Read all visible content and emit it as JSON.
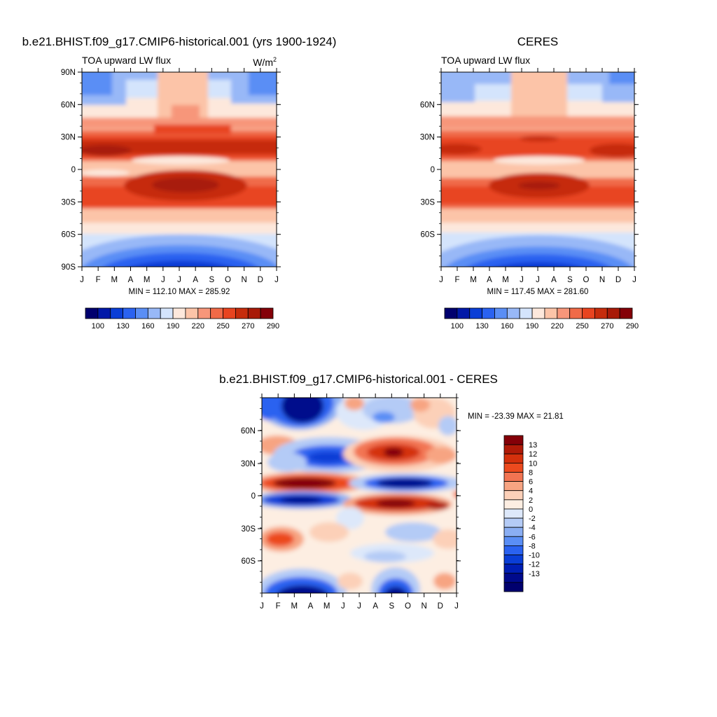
{
  "panels": [
    {
      "title": "b.e21.BHIST.f09_g17.CMIP6-historical.001 (yrs 1900-1924)",
      "subtitle_left": "TOA upward LW flux",
      "units_base": "W/m",
      "units_sup": "2",
      "y_ticks": [
        "90N",
        "60N",
        "30N",
        "0",
        "30S",
        "60S",
        "90S"
      ],
      "x_ticks": [
        "J",
        "F",
        "M",
        "A",
        "M",
        "J",
        "J",
        "A",
        "S",
        "O",
        "N",
        "D",
        "J"
      ],
      "minmax": "MIN = 112.10 MAX = 285.92",
      "colorbar_labels": [
        "100",
        "130",
        "160",
        "190",
        "220",
        "250",
        "270",
        "290"
      ]
    },
    {
      "title": "CERES",
      "subtitle_left": "TOA upward LW flux",
      "y_ticks": [
        "60N",
        "30N",
        "0",
        "30S",
        "60S"
      ],
      "x_ticks": [
        "J",
        "F",
        "M",
        "A",
        "M",
        "J",
        "J",
        "A",
        "S",
        "O",
        "N",
        "D",
        "J"
      ],
      "minmax": "MIN = 117.45 MAX = 281.60",
      "colorbar_labels": [
        "100",
        "130",
        "160",
        "190",
        "220",
        "250",
        "270",
        "290"
      ]
    },
    {
      "title": "b.e21.BHIST.f09_g17.CMIP6-historical.001 - CERES",
      "y_ticks": [
        "60N",
        "30N",
        "0",
        "30S",
        "60S"
      ],
      "x_ticks": [
        "J",
        "F",
        "M",
        "A",
        "M",
        "J",
        "J",
        "A",
        "S",
        "O",
        "N",
        "D",
        "J"
      ],
      "minmax": "MIN = -23.39 MAX =  21.81",
      "colorbar_labels": [
        "13",
        "12",
        "10",
        "8",
        "6",
        "4",
        "2",
        "0",
        "-2",
        "-4",
        "-6",
        "-8",
        "-10",
        "-12",
        "-13"
      ]
    }
  ],
  "colors": {
    "abs_palette": [
      "#00006e",
      "#0018a8",
      "#0a3ed6",
      "#2a62f0",
      "#5a8ef5",
      "#98b8f7",
      "#d4e4fc",
      "#fde8dc",
      "#fcc4a8",
      "#f7967a",
      "#f06a48",
      "#e84420",
      "#c62c0c",
      "#a81a08",
      "#840008"
    ],
    "diff_palette": [
      "#840008",
      "#b01a08",
      "#d4300c",
      "#ec4a1e",
      "#f27452",
      "#f7a482",
      "#fcd0b8",
      "#fdeee2",
      "#dde8fa",
      "#b4cbf6",
      "#8aaef3",
      "#5a8ef5",
      "#2a62f0",
      "#0a3ed6",
      "#001eb4",
      "#000a8c",
      "#00006e"
    ]
  },
  "chart_data": [
    {
      "type": "heatmap",
      "title": "b.e21.BHIST.f09_g17.CMIP6-historical.001 (yrs 1900-1924)",
      "subtitle": "TOA upward LW flux",
      "units": "W/m2",
      "x": [
        "J",
        "F",
        "M",
        "A",
        "M",
        "J",
        "J",
        "A",
        "S",
        "O",
        "N",
        "D",
        "J"
      ],
      "y": [
        "90N",
        "60N",
        "30N",
        "0",
        "30S",
        "60S",
        "90S"
      ],
      "min": 112.1,
      "max": 285.92,
      "levels": [
        100,
        130,
        160,
        190,
        220,
        250,
        270,
        290
      ],
      "features": [
        {
          "lat": 18,
          "month": 1.5,
          "value": 285
        },
        {
          "lat": -15,
          "month": 7.5,
          "value": 280
        },
        {
          "lat": -85,
          "month": 7.5,
          "value": 112
        }
      ]
    },
    {
      "type": "heatmap",
      "title": "CERES",
      "subtitle": "TOA upward LW flux",
      "x": [
        "J",
        "F",
        "M",
        "A",
        "M",
        "J",
        "J",
        "A",
        "S",
        "O",
        "N",
        "D",
        "J"
      ],
      "y": [
        "60N",
        "30N",
        "0",
        "30S",
        "60S"
      ],
      "min": 117.45,
      "max": 281.6,
      "levels": [
        100,
        130,
        160,
        190,
        220,
        250,
        270,
        290
      ],
      "features": [
        {
          "lat": 28,
          "month": 6.5,
          "value": 280
        },
        {
          "lat": -15,
          "month": 6.5,
          "value": 281
        },
        {
          "lat": -85,
          "month": 6.5,
          "value": 117
        }
      ]
    },
    {
      "type": "heatmap",
      "title": "b.e21.BHIST.f09_g17.CMIP6-historical.001 - CERES",
      "x": [
        "J",
        "F",
        "M",
        "A",
        "M",
        "J",
        "J",
        "A",
        "S",
        "O",
        "N",
        "D",
        "J"
      ],
      "y": [
        "60N",
        "30N",
        "0",
        "30S",
        "60S"
      ],
      "min": -23.39,
      "max": 21.81,
      "levels": [
        13,
        12,
        10,
        8,
        6,
        4,
        2,
        0,
        -2,
        -4,
        -6,
        -8,
        -10,
        -12,
        -13
      ],
      "features": [
        {
          "lat": 15,
          "month": 3.5,
          "value": 21.8
        },
        {
          "lat": -8,
          "month": 8.5,
          "value": 18
        },
        {
          "lat": 40,
          "month": 8.5,
          "value": 14
        },
        {
          "lat": 40,
          "month": 4.0,
          "value": -14
        },
        {
          "lat": 10,
          "month": 9.0,
          "value": -15
        },
        {
          "lat": -8,
          "month": 3.5,
          "value": -13
        },
        {
          "lat": 85,
          "month": 2.5,
          "value": -22
        },
        {
          "lat": -80,
          "month": 3.5,
          "value": -23.4
        },
        {
          "lat": -80,
          "month": 9.0,
          "value": -20
        }
      ]
    }
  ]
}
